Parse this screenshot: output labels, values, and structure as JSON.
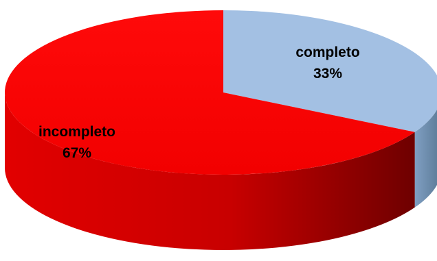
{
  "chart_data": {
    "type": "pie",
    "style": "3d",
    "title": "",
    "slices": [
      {
        "label": "completo",
        "value_text": "33%",
        "value": 33,
        "color": "#a3c0e3",
        "side_color": "#6d8aa8"
      },
      {
        "label": "incompleto",
        "value_text": "67%",
        "value": 67,
        "color": "#ff0000",
        "side_color": "#b30000"
      }
    ],
    "start_angle": "12 o'clock",
    "direction": "clockwise"
  }
}
